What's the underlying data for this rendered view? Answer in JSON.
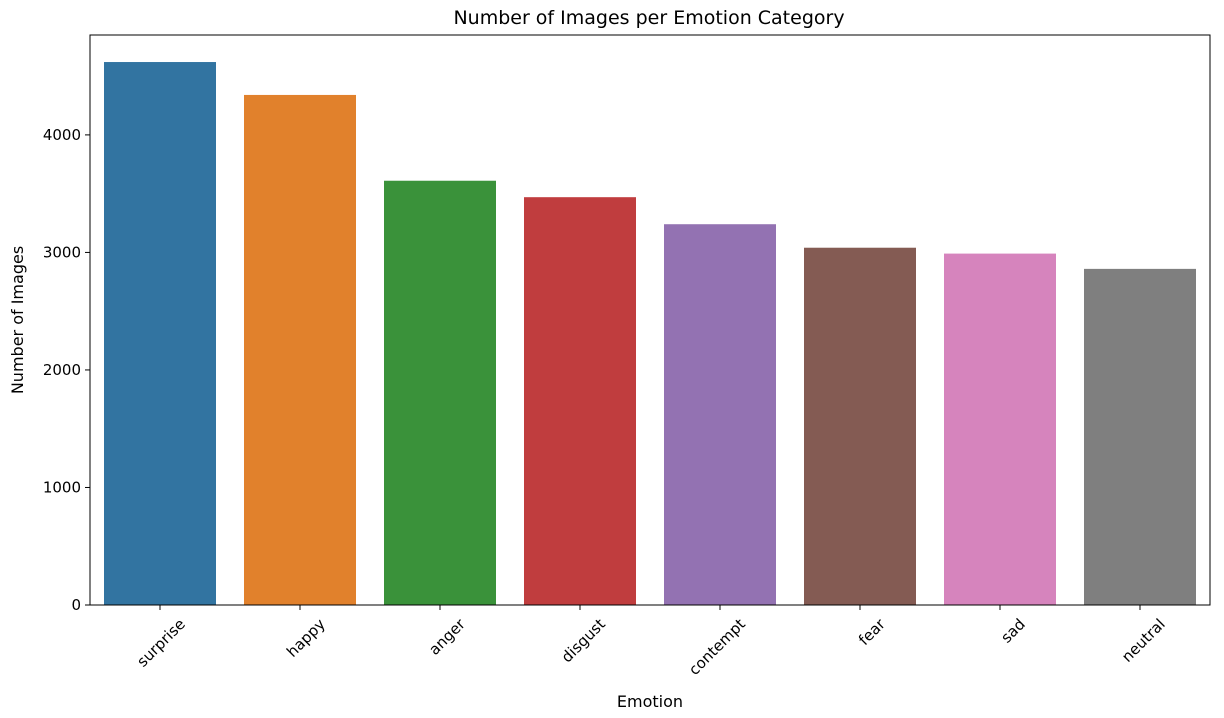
{
  "chart_data": {
    "type": "bar",
    "title": "Number of Images per Emotion Category",
    "xlabel": "Emotion",
    "ylabel": "Number of Images",
    "categories": [
      "surprise",
      "happy",
      "anger",
      "disgust",
      "contempt",
      "fear",
      "sad",
      "neutral"
    ],
    "values": [
      4620,
      4340,
      3610,
      3470,
      3240,
      3040,
      2990,
      2860
    ],
    "colors": [
      "#3274a1",
      "#e1812c",
      "#3a923a",
      "#c03d3e",
      "#9372b2",
      "#845b53",
      "#d684bd",
      "#7f7f7f"
    ],
    "ylim": [
      0,
      4850
    ],
    "yticks": [
      0,
      1000,
      2000,
      3000,
      4000
    ],
    "ytick_labels": [
      "0",
      "1000",
      "2000",
      "3000",
      "4000"
    ],
    "grid": false,
    "legend": "none"
  }
}
